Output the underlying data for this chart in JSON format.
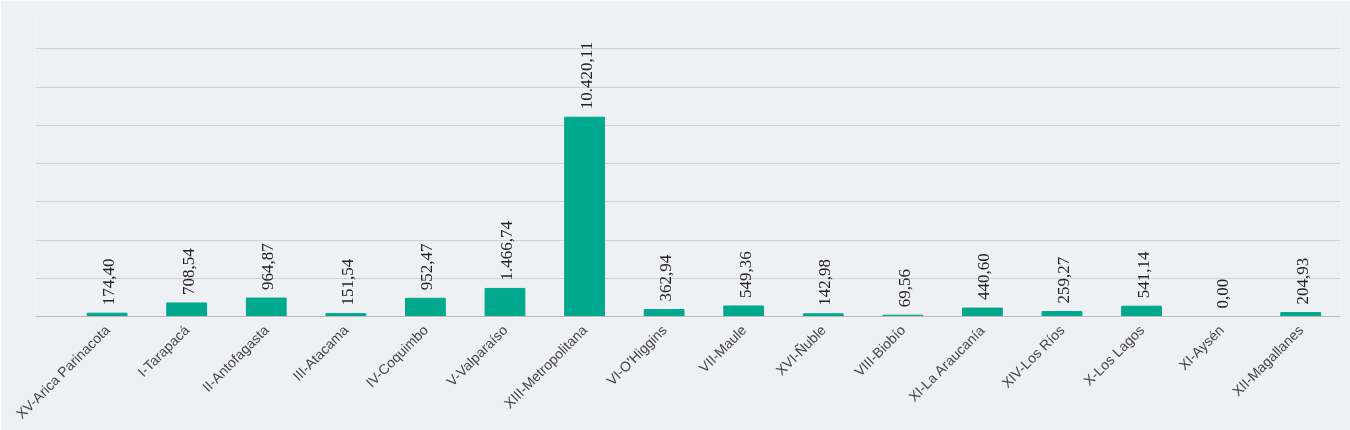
{
  "chart_data": {
    "type": "bar",
    "categories": [
      "XV-Arica Parinacota",
      "I-Tarapacá",
      "II-Antofagasta",
      "III-Atacama",
      "IV-Coquimbo",
      "V-Valparaíso",
      "XIII-Metropolitana",
      "VI-O'Higgins",
      "VII-Maule",
      "XVI-Ñuble",
      "VIII-Biobío",
      "XI-La Araucanía",
      "XIV-Los Ríos",
      "X-Los Lagos",
      "XI-Aysén",
      "XII-Magallanes"
    ],
    "values": [
      174.4,
      708.54,
      964.87,
      151.54,
      952.47,
      1466.74,
      10420.11,
      362.94,
      549.36,
      142.98,
      69.56,
      440.6,
      259.27,
      541.14,
      0.0,
      204.93
    ],
    "value_labels": [
      "174,40",
      "708,54",
      "964,87",
      "151,54",
      "952,47",
      "1.466,74",
      "10.420,11",
      "362,94",
      "549,36",
      "142,98",
      "69,56",
      "440,60",
      "259,27",
      "541,14",
      "0,00",
      "204,93"
    ],
    "color": "#00a88e",
    "ylim": [
      0,
      16000
    ],
    "yticks": [
      {
        "value": 0,
        "label": null
      },
      {
        "value": 2000,
        "label": null
      },
      {
        "value": 4000,
        "label": null
      },
      {
        "value": 6000,
        "label": null
      },
      {
        "value": 8000,
        "label": null
      },
      {
        "value": 10000,
        "label": null
      },
      {
        "value": 12000,
        "label": null
      },
      {
        "value": 14000,
        "label": null
      }
    ],
    "grid": "y",
    "tick_labels": "x"
  }
}
